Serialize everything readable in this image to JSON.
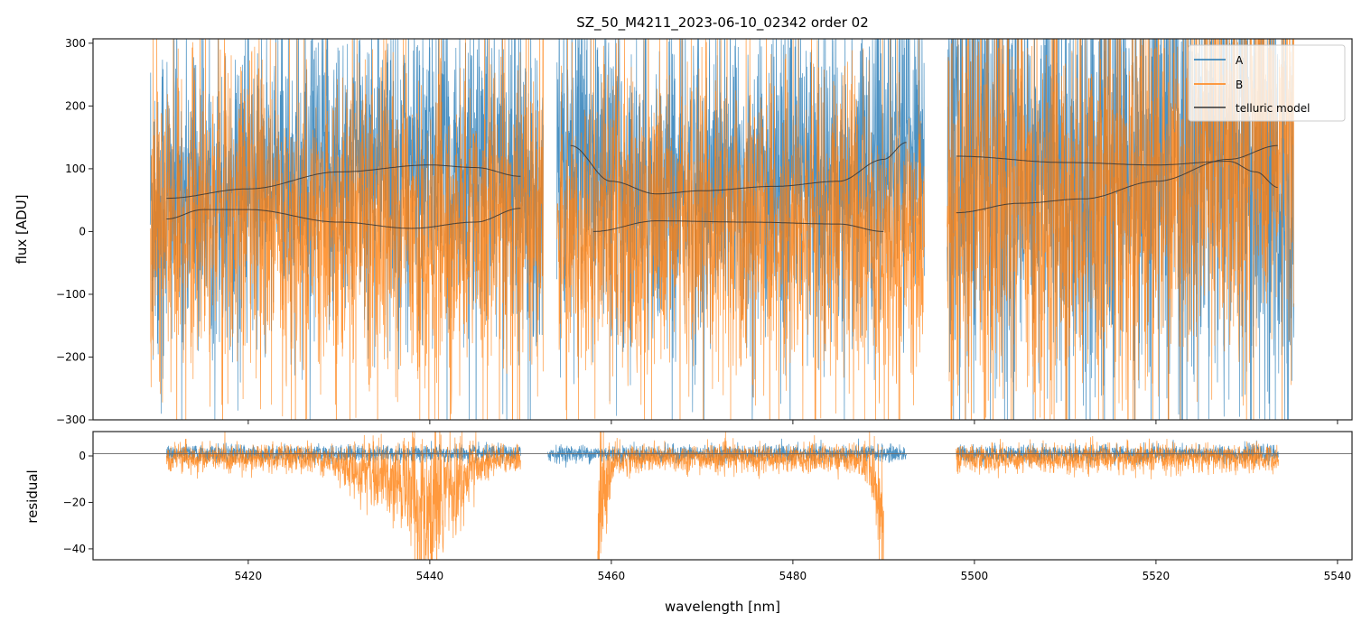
{
  "chart_data": {
    "type": "line",
    "title": "SZ_50_M4211_2023-06-10_02342  order 02",
    "xlabel": "wavelength [nm]",
    "xlim": [
      5402.9,
      5541.6
    ],
    "xticks": [
      5420,
      5440,
      5460,
      5480,
      5500,
      5520,
      5540
    ],
    "colors": {
      "A": "#1f77b4",
      "B": "#ff7f0e",
      "model": "#333333"
    },
    "legend": {
      "placement": "top-right",
      "entries": [
        "A",
        "B",
        "telluric model"
      ]
    },
    "panels": [
      {
        "name": "flux",
        "ylabel": "flux [ADU]",
        "ylim": [
          -300,
          307
        ],
        "yticks": [
          300,
          200,
          100,
          0,
          -100,
          -200,
          -300
        ],
        "yticklabels": [
          "300",
          "200",
          "100",
          "0",
          "−100",
          "−200",
          "−300"
        ],
        "spectra_segments": [
          [
            5409.2,
            5452.5
          ],
          [
            5454.0,
            5494.5
          ],
          [
            5497.0,
            5535.2
          ]
        ],
        "telluric_model": [
          {
            "x": [
              5411,
              5420,
              5430,
              5440,
              5445,
              5450
            ],
            "y": [
              53,
              68,
              95,
              106,
              102,
              88
            ]
          },
          {
            "x": [
              5411,
              5415,
              5420,
              5430,
              5438,
              5445,
              5450
            ],
            "y": [
              20,
              35,
              35,
              15,
              5,
              15,
              37
            ]
          },
          {
            "x": [
              5455.5,
              5460,
              5465,
              5470,
              5478,
              5485,
              5490,
              5492.5
            ],
            "y": [
              137,
              80,
              60,
              65,
              72,
              80,
              115,
              142
            ]
          },
          {
            "x": [
              5458,
              5465,
              5475,
              5485,
              5490
            ],
            "y": [
              0,
              17,
              15,
              12,
              0
            ]
          },
          {
            "x": [
              5498,
              5510,
              5520,
              5528,
              5531,
              5533.5
            ],
            "y": [
              120,
              110,
              106,
              112,
              95,
              70
            ]
          },
          {
            "x": [
              5498,
              5505,
              5512,
              5520,
              5528,
              5533.5
            ],
            "y": [
              30,
              45,
              52,
              80,
              115,
              137
            ]
          }
        ]
      },
      {
        "name": "residual",
        "ylabel": "residual",
        "ylim": [
          -44.7,
          10.5
        ],
        "yticks": [
          0,
          -20,
          -40
        ],
        "yticklabels": [
          "0",
          "−20",
          "−40"
        ],
        "reference_line": 1,
        "residual_segments_A": [
          [
            5411,
            5450
          ],
          [
            5453,
            5492.5
          ],
          [
            5498,
            5533.5
          ]
        ],
        "residual_segments_B": [
          [
            5411,
            5450
          ],
          [
            5458.5,
            5490
          ],
          [
            5498,
            5533.5
          ]
        ]
      }
    ]
  }
}
